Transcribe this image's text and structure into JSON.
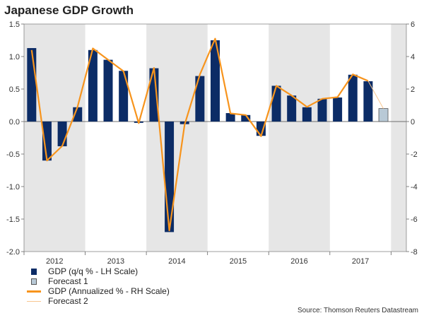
{
  "title": "Japanese GDP Growth",
  "source": "Source: Thomson Reuters Datastream",
  "colors": {
    "gdp_bar": "#0c2c66",
    "forecast_bar": "#b8c9d6",
    "annualized_line": "#f7941d",
    "forecast_line": "#f8c690",
    "shade": "#e6e6e6"
  },
  "chart_data": {
    "type": "bar",
    "title": "Japanese GDP Growth",
    "categories": [
      "2012 Q1",
      "2012 Q2",
      "2012 Q3",
      "2012 Q4",
      "2013 Q1",
      "2013 Q2",
      "2013 Q3",
      "2013 Q4",
      "2014 Q1",
      "2014 Q2",
      "2014 Q3",
      "2014 Q4",
      "2015 Q1",
      "2015 Q2",
      "2015 Q3",
      "2015 Q4",
      "2016 Q1",
      "2016 Q2",
      "2016 Q3",
      "2016 Q4",
      "2017 Q1",
      "2017 Q2",
      "2017 Q3",
      "2017 Q4"
    ],
    "year_labels": [
      "2012",
      "2013",
      "2014",
      "2015",
      "2016",
      "2017"
    ],
    "left_axis": {
      "range": [
        -2.0,
        1.5
      ],
      "ticks": [
        "1.5",
        "1.0",
        "0.5",
        "0.0",
        "-0.5",
        "-1.0",
        "-1.5",
        "-2.0"
      ]
    },
    "right_axis": {
      "range": [
        -8,
        6
      ],
      "ticks": [
        "6",
        "4",
        "2",
        "0",
        "-2",
        "-4",
        "-6",
        "-8"
      ]
    },
    "series": [
      {
        "name": "GDP (q/q % - LH Scale)",
        "type": "bar",
        "axis": "left",
        "values": [
          1.13,
          -0.6,
          -0.38,
          0.22,
          1.1,
          0.95,
          0.78,
          -0.02,
          0.82,
          -1.7,
          -0.04,
          0.7,
          1.25,
          0.13,
          0.1,
          -0.22,
          0.55,
          0.4,
          0.22,
          0.35,
          0.37,
          0.72,
          0.62,
          null
        ]
      },
      {
        "name": "Forecast 1",
        "type": "bar",
        "axis": "left",
        "values": [
          null,
          null,
          null,
          null,
          null,
          null,
          null,
          null,
          null,
          null,
          null,
          null,
          null,
          null,
          null,
          null,
          null,
          null,
          null,
          null,
          null,
          null,
          null,
          0.2
        ]
      },
      {
        "name": "GDP (Annualized % - RH Scale)",
        "type": "line",
        "axis": "right",
        "values": [
          4.4,
          -2.4,
          -1.5,
          0.9,
          4.5,
          3.8,
          3.1,
          -0.1,
          3.3,
          -6.7,
          -0.2,
          2.9,
          5.1,
          0.5,
          0.4,
          -0.9,
          2.2,
          1.6,
          0.9,
          1.4,
          1.5,
          2.9,
          2.5,
          null
        ]
      },
      {
        "name": "Forecast 2",
        "type": "line",
        "axis": "right",
        "values": [
          null,
          null,
          null,
          null,
          null,
          null,
          null,
          null,
          null,
          null,
          null,
          null,
          null,
          null,
          null,
          null,
          null,
          null,
          null,
          null,
          null,
          null,
          2.5,
          0.8
        ]
      }
    ],
    "shaded_years": [
      "2012",
      "2014",
      "2016"
    ],
    "legend_position": "bottom-left"
  }
}
